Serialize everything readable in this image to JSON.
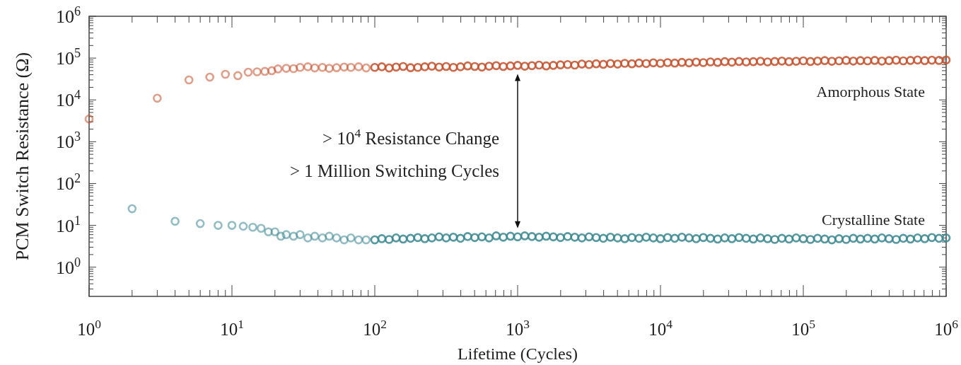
{
  "chart_data": {
    "type": "scatter",
    "xlabel": "Lifetime (Cycles)",
    "ylabel": "PCM Switch Resistance (Ω)",
    "log": "xy",
    "marker": "circle",
    "grid": false,
    "xlim": [
      1,
      1000000
    ],
    "ylim": [
      0.2,
      1000000
    ],
    "xticks": [
      {
        "value": 1,
        "label": "10$^{0}$"
      },
      {
        "value": 2,
        "label": null
      },
      {
        "value": 3,
        "label": null
      },
      {
        "value": 4,
        "label": null
      },
      {
        "value": 5,
        "label": null
      },
      {
        "value": 6,
        "label": null
      },
      {
        "value": 7,
        "label": null
      },
      {
        "value": 8,
        "label": null
      },
      {
        "value": 9,
        "label": null
      },
      {
        "value": 10,
        "label": "10$^{1}$"
      },
      {
        "value": 20,
        "label": null
      },
      {
        "value": 30,
        "label": null
      },
      {
        "value": 40,
        "label": null
      },
      {
        "value": 50,
        "label": null
      },
      {
        "value": 60,
        "label": null
      },
      {
        "value": 70,
        "label": null
      },
      {
        "value": 80,
        "label": null
      },
      {
        "value": 90,
        "label": null
      },
      {
        "value": 100,
        "label": "10$^{2}$"
      },
      {
        "value": 200,
        "label": null
      },
      {
        "value": 300,
        "label": null
      },
      {
        "value": 400,
        "label": null
      },
      {
        "value": 500,
        "label": null
      },
      {
        "value": 600,
        "label": null
      },
      {
        "value": 700,
        "label": null
      },
      {
        "value": 800,
        "label": null
      },
      {
        "value": 900,
        "label": null
      },
      {
        "value": 1000,
        "label": "10$^{3}$"
      },
      {
        "value": 2000,
        "label": null
      },
      {
        "value": 3000,
        "label": null
      },
      {
        "value": 4000,
        "label": null
      },
      {
        "value": 5000,
        "label": null
      },
      {
        "value": 6000,
        "label": null
      },
      {
        "value": 7000,
        "label": null
      },
      {
        "value": 8000,
        "label": null
      },
      {
        "value": 9000,
        "label": null
      },
      {
        "value": 10000,
        "label": "10$^{4}$"
      },
      {
        "value": 20000,
        "label": null
      },
      {
        "value": 30000,
        "label": null
      },
      {
        "value": 40000,
        "label": null
      },
      {
        "value": 50000,
        "label": null
      },
      {
        "value": 60000,
        "label": null
      },
      {
        "value": 70000,
        "label": null
      },
      {
        "value": 80000,
        "label": null
      },
      {
        "value": 90000,
        "label": null
      },
      {
        "value": 100000,
        "label": "10$^{5}$"
      },
      {
        "value": 200000,
        "label": null
      },
      {
        "value": 300000,
        "label": null
      },
      {
        "value": 400000,
        "label": null
      },
      {
        "value": 500000,
        "label": null
      },
      {
        "value": 600000,
        "label": null
      },
      {
        "value": 700000,
        "label": null
      },
      {
        "value": 800000,
        "label": null
      },
      {
        "value": 900000,
        "label": null
      },
      {
        "value": 1000000,
        "label": "10$^{6}$"
      }
    ],
    "yticks": [
      {
        "value": 0.3,
        "label": null
      },
      {
        "value": 0.4,
        "label": null
      },
      {
        "value": 0.5,
        "label": null
      },
      {
        "value": 0.6,
        "label": null
      },
      {
        "value": 0.7,
        "label": null
      },
      {
        "value": 0.8,
        "label": null
      },
      {
        "value": 0.9,
        "label": null
      },
      {
        "value": 1,
        "label": "10$^{0}$"
      },
      {
        "value": 2,
        "label": null
      },
      {
        "value": 3,
        "label": null
      },
      {
        "value": 4,
        "label": null
      },
      {
        "value": 5,
        "label": null
      },
      {
        "value": 6,
        "label": null
      },
      {
        "value": 7,
        "label": null
      },
      {
        "value": 8,
        "label": null
      },
      {
        "value": 9,
        "label": null
      },
      {
        "value": 10,
        "label": "10$^{1}$"
      },
      {
        "value": 20,
        "label": null
      },
      {
        "value": 30,
        "label": null
      },
      {
        "value": 40,
        "label": null
      },
      {
        "value": 50,
        "label": null
      },
      {
        "value": 60,
        "label": null
      },
      {
        "value": 70,
        "label": null
      },
      {
        "value": 80,
        "label": null
      },
      {
        "value": 90,
        "label": null
      },
      {
        "value": 100,
        "label": "10$^{2}$"
      },
      {
        "value": 200,
        "label": null
      },
      {
        "value": 300,
        "label": null
      },
      {
        "value": 400,
        "label": null
      },
      {
        "value": 500,
        "label": null
      },
      {
        "value": 600,
        "label": null
      },
      {
        "value": 700,
        "label": null
      },
      {
        "value": 800,
        "label": null
      },
      {
        "value": 900,
        "label": null
      },
      {
        "value": 1000,
        "label": "10$^{3}$"
      },
      {
        "value": 2000,
        "label": null
      },
      {
        "value": 3000,
        "label": null
      },
      {
        "value": 4000,
        "label": null
      },
      {
        "value": 5000,
        "label": null
      },
      {
        "value": 6000,
        "label": null
      },
      {
        "value": 7000,
        "label": null
      },
      {
        "value": 8000,
        "label": null
      },
      {
        "value": 9000,
        "label": null
      },
      {
        "value": 10000,
        "label": "10$^{4}$"
      },
      {
        "value": 20000,
        "label": null
      },
      {
        "value": 30000,
        "label": null
      },
      {
        "value": 40000,
        "label": null
      },
      {
        "value": 50000,
        "label": null
      },
      {
        "value": 60000,
        "label": null
      },
      {
        "value": 70000,
        "label": null
      },
      {
        "value": 80000,
        "label": null
      },
      {
        "value": 90000,
        "label": null
      },
      {
        "value": 100000,
        "label": "10$^{5}$"
      },
      {
        "value": 200000,
        "label": null
      },
      {
        "value": 300000,
        "label": null
      },
      {
        "value": 400000,
        "label": null
      },
      {
        "value": 500000,
        "label": null
      },
      {
        "value": 600000,
        "label": null
      },
      {
        "value": 700000,
        "label": null
      },
      {
        "value": 800000,
        "label": null
      },
      {
        "value": 900000,
        "label": null
      },
      {
        "value": 1000000,
        "label": "10$^{6}$"
      }
    ],
    "annotations": [
      "> 10$^{4}$ Resistance Change",
      "> 1 Million Switching Cycles"
    ],
    "series": [
      {
        "name": "Amorphous State",
        "color": "#c4502c",
        "x": [
          1,
          3,
          5,
          7,
          9,
          11,
          13,
          15,
          17,
          19,
          21,
          24,
          27,
          30,
          34,
          38,
          43,
          48,
          54,
          61,
          68,
          77,
          87,
          100,
          112,
          126,
          141,
          158,
          178,
          200,
          224,
          251,
          282,
          316,
          355,
          398,
          447,
          501,
          562,
          631,
          708,
          794,
          891,
          1000,
          1122,
          1259,
          1413,
          1585,
          1778,
          1995,
          2239,
          2512,
          2818,
          3162,
          3548,
          3981,
          4467,
          5012,
          5623,
          6310,
          7079,
          7943,
          8913,
          10000,
          11220,
          12589,
          14125,
          15849,
          17783,
          19953,
          22387,
          25119,
          28184,
          31623,
          35481,
          39811,
          44668,
          50119,
          56234,
          63096,
          70795,
          79433,
          89125,
          100000,
          112202,
          125893,
          141254,
          158489,
          177828,
          199526,
          223872,
          251189,
          281838,
          316228,
          354813,
          398107,
          446684,
          501187,
          562341,
          630957,
          707946,
          794328,
          891251,
          1000000
        ],
        "values": [
          3500,
          11000,
          30000,
          35000,
          41000,
          38000,
          46000,
          47000,
          48000,
          50000,
          55000,
          57000,
          56000,
          60000,
          62000,
          58000,
          60000,
          57000,
          59000,
          61000,
          60000,
          62000,
          58000,
          60000,
          62000,
          58000,
          61000,
          63000,
          59000,
          60000,
          62000,
          64000,
          61000,
          63000,
          60000,
          62000,
          65000,
          63000,
          61000,
          64000,
          66000,
          63000,
          65000,
          67000,
          64000,
          66000,
          68000,
          65000,
          67000,
          69000,
          70000,
          68000,
          72000,
          70000,
          73000,
          71000,
          74000,
          72000,
          75000,
          73000,
          76000,
          74000,
          77000,
          75000,
          78000,
          76000,
          79000,
          77000,
          80000,
          78000,
          81000,
          79000,
          82000,
          80000,
          83000,
          81000,
          82000,
          84000,
          81000,
          83000,
          85000,
          82000,
          84000,
          86000,
          83000,
          85000,
          87000,
          84000,
          86000,
          88000,
          85000,
          87000,
          86000,
          88000,
          85000,
          87000,
          89000,
          86000,
          88000,
          90000,
          87000,
          89000,
          88000,
          90000
        ]
      },
      {
        "name": "Crystalline State",
        "color": "#3a8791",
        "x": [
          2,
          4,
          6,
          8,
          10,
          12,
          14,
          16,
          18,
          20,
          22,
          24,
          27,
          30,
          34,
          38,
          43,
          48,
          54,
          61,
          68,
          77,
          87,
          100,
          112,
          126,
          141,
          158,
          178,
          200,
          224,
          251,
          282,
          316,
          355,
          398,
          447,
          501,
          562,
          631,
          708,
          794,
          891,
          1000,
          1122,
          1259,
          1413,
          1585,
          1778,
          1995,
          2239,
          2512,
          2818,
          3162,
          3548,
          3981,
          4467,
          5012,
          5623,
          6310,
          7079,
          7943,
          8913,
          10000,
          11220,
          12589,
          14125,
          15849,
          17783,
          19953,
          22387,
          25119,
          28184,
          31623,
          35481,
          39811,
          44668,
          50119,
          56234,
          63096,
          70795,
          79433,
          89125,
          100000,
          112202,
          125893,
          141254,
          158489,
          177828,
          199526,
          223872,
          251189,
          281838,
          316228,
          354813,
          398107,
          446684,
          501187,
          562341,
          630957,
          707946,
          794328,
          891251,
          1000000
        ],
        "values": [
          25,
          12.5,
          11,
          10,
          10,
          9.5,
          9,
          8.5,
          7,
          7,
          5.5,
          6,
          5.5,
          6,
          5,
          5.5,
          5,
          5.5,
          5,
          4.5,
          5,
          4.5,
          4.5,
          4.5,
          4.8,
          4.6,
          5.0,
          4.7,
          4.9,
          5.1,
          4.8,
          5.0,
          5.3,
          5.0,
          5.2,
          4.9,
          5.4,
          5.1,
          5.3,
          5.0,
          5.6,
          5.2,
          5.5,
          5.3,
          5.6,
          5.4,
          5.2,
          5.5,
          5.3,
          5.1,
          5.4,
          5.2,
          5.0,
          5.3,
          5.1,
          4.9,
          5.2,
          5.0,
          4.8,
          5.1,
          4.9,
          5.2,
          5.0,
          4.8,
          5.1,
          4.9,
          5.2,
          5.0,
          4.8,
          5.1,
          4.9,
          4.7,
          5.0,
          4.8,
          5.1,
          4.9,
          4.7,
          5.0,
          4.8,
          4.6,
          4.9,
          4.7,
          5.0,
          4.8,
          4.6,
          4.9,
          4.7,
          4.5,
          4.8,
          4.6,
          4.9,
          4.7,
          4.9,
          4.7,
          5.0,
          4.8,
          4.6,
          4.9,
          4.7,
          5.0,
          4.8,
          5.1,
          4.9,
          5.0
        ]
      }
    ]
  }
}
